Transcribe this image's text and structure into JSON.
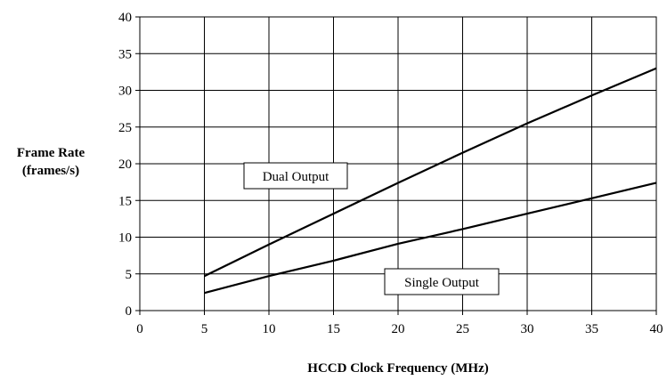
{
  "chart_data": {
    "type": "line",
    "xlabel": "HCCD Clock Frequency (MHz)",
    "ylabel_lines": [
      "Frame Rate",
      "(frames/s)"
    ],
    "xlim": [
      0,
      40
    ],
    "ylim": [
      0,
      40
    ],
    "x_ticks": [
      0,
      5,
      10,
      15,
      20,
      25,
      30,
      35,
      40
    ],
    "y_ticks": [
      0,
      5,
      10,
      15,
      20,
      25,
      30,
      35,
      40
    ],
    "grid": true,
    "series": [
      {
        "name": "Dual Output",
        "x": [
          5,
          10,
          15,
          20,
          25,
          30,
          35,
          40
        ],
        "y": [
          4.7,
          9.0,
          13.2,
          17.4,
          21.5,
          25.5,
          29.3,
          33.0
        ]
      },
      {
        "name": "Single Output",
        "x": [
          5,
          10,
          15,
          20,
          25,
          30,
          35,
          40
        ],
        "y": [
          2.4,
          4.7,
          6.8,
          9.1,
          11.1,
          13.2,
          15.3,
          17.4
        ]
      }
    ],
    "annotations": [
      {
        "text": "Dual Output",
        "series": "Dual Output"
      },
      {
        "text": "Single Output",
        "series": "Single Output"
      }
    ]
  }
}
